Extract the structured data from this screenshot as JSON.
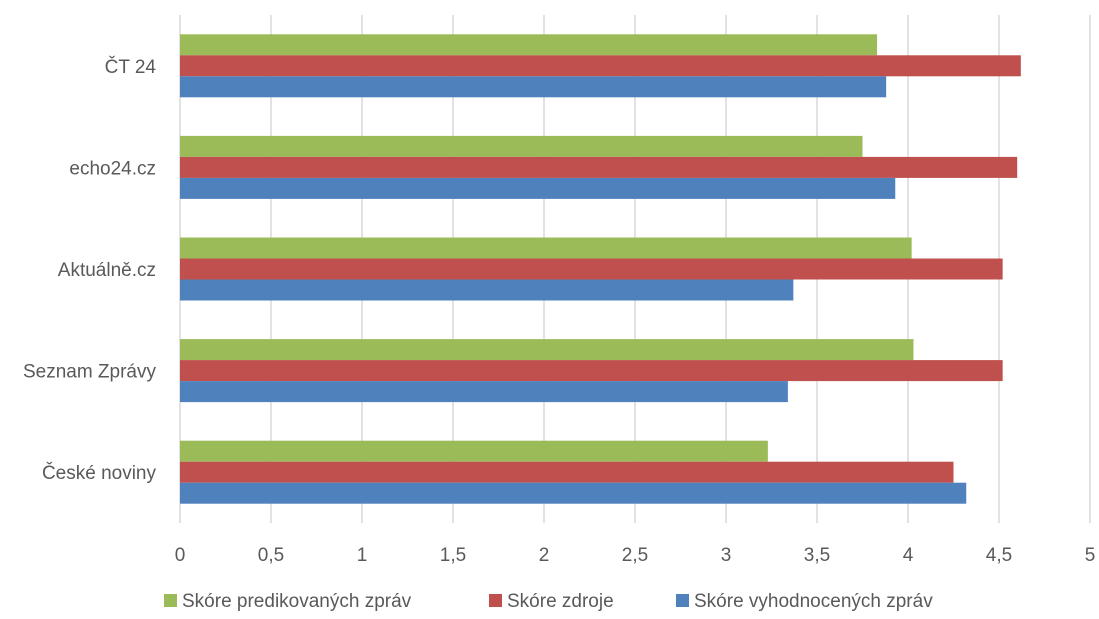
{
  "chart_data": {
    "type": "bar",
    "orientation": "horizontal",
    "categories": [
      "ČT 24",
      "echo24.cz",
      "Aktuálně.cz",
      "Seznam Zprávy",
      "České noviny"
    ],
    "series": [
      {
        "name": "Skóre predikovaných zpráv",
        "color": "#9bbb59",
        "values": [
          3.83,
          3.75,
          4.02,
          4.03,
          3.23
        ]
      },
      {
        "name": "Skóre zdroje",
        "color": "#c0504d",
        "values": [
          4.62,
          4.6,
          4.52,
          4.52,
          4.25
        ]
      },
      {
        "name": "Skóre vyhodnocených zpráv",
        "color": "#4f81bd",
        "values": [
          3.88,
          3.93,
          3.37,
          3.34,
          4.32
        ]
      }
    ],
    "xlim": [
      0,
      5
    ],
    "xticks": [
      "0",
      "0,5",
      "1",
      "1,5",
      "2",
      "2,5",
      "3",
      "3,5",
      "4",
      "4,5",
      "5"
    ],
    "grid": true,
    "legend_position": "bottom"
  }
}
